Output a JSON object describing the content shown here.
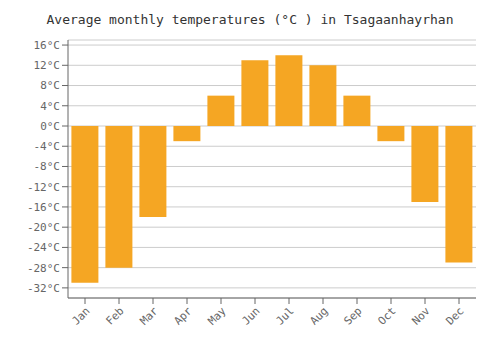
{
  "chart_data": {
    "type": "bar",
    "title": "Average monthly temperatures (°C ) in Tsagaanhayrhan",
    "categories": [
      "Jan",
      "Feb",
      "Mar",
      "Apr",
      "May",
      "Jun",
      "Jul",
      "Aug",
      "Sep",
      "Oct",
      "Nov",
      "Dec"
    ],
    "values": [
      -31,
      -28,
      -18,
      -3,
      6,
      13,
      14,
      12,
      6,
      -3,
      -15,
      -27
    ],
    "color": "#F5A623",
    "ylim": [
      -34,
      17
    ],
    "yticks": [
      {
        "value": -32,
        "label": "-32°C"
      },
      {
        "value": -28,
        "label": "-28°C"
      },
      {
        "value": -24,
        "label": "-24°C"
      },
      {
        "value": -20,
        "label": "-20°C"
      },
      {
        "value": -16,
        "label": "-16°C"
      },
      {
        "value": -12,
        "label": "-12°C"
      },
      {
        "value": -8,
        "label": "-8°C"
      },
      {
        "value": -4,
        "label": "-4°C"
      },
      {
        "value": 0,
        "label": "0°C"
      },
      {
        "value": 4,
        "label": "4°C"
      },
      {
        "value": 8,
        "label": "8°C"
      },
      {
        "value": 12,
        "label": "12°C"
      },
      {
        "value": 16,
        "label": "16°C"
      }
    ],
    "grid": true
  }
}
